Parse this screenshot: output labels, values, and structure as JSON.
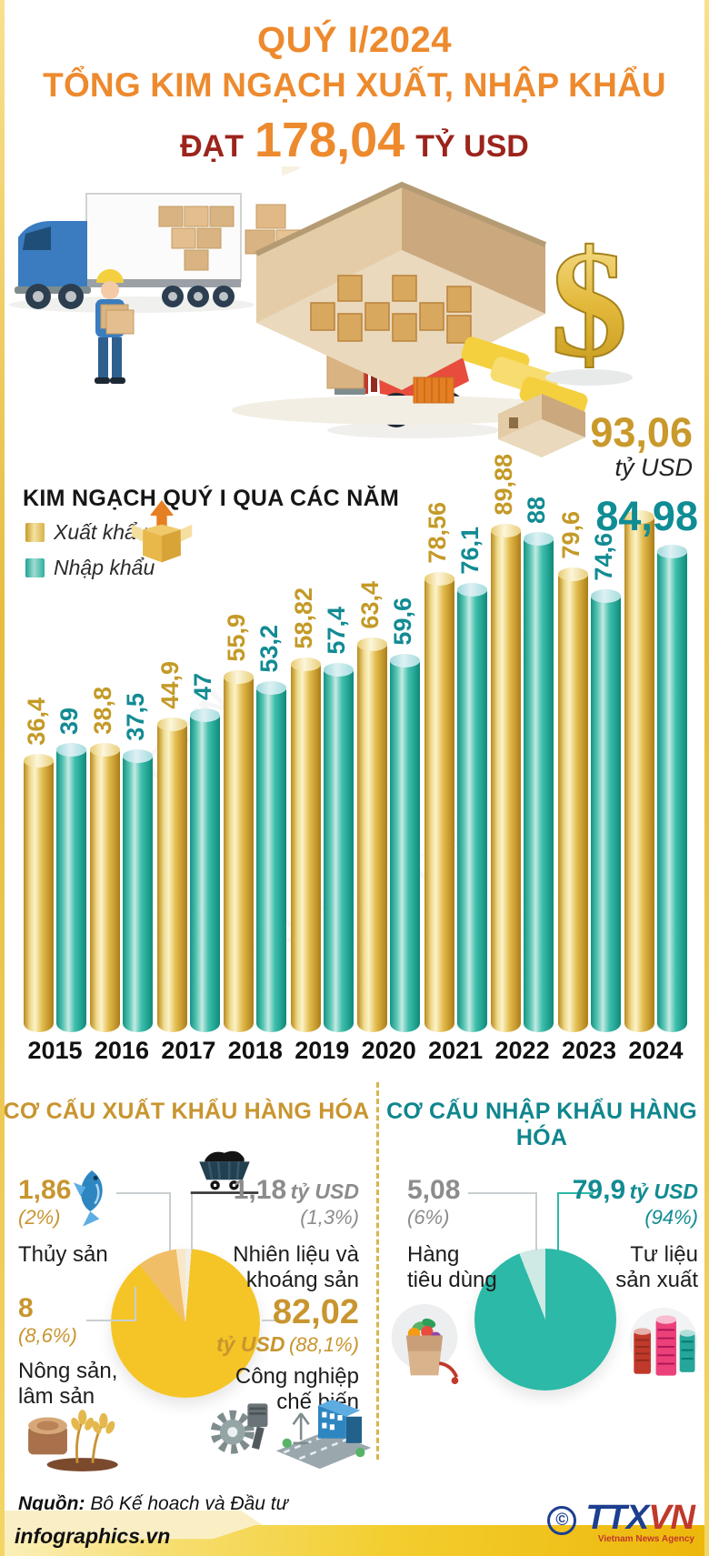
{
  "header": {
    "line1": "QUÝ I/2024",
    "line2": "TỔNG KIM NGẠCH XUẤT, NHẬP KHẨU",
    "line3_prefix": "ĐẠT",
    "line3_value": "178,04",
    "line3_suffix": "TỶ USD"
  },
  "colors": {
    "orange": "#ED8A2E",
    "dark_red": "#9C241C",
    "gold_text": "#C49A27",
    "teal_text": "#128B93",
    "bar_gold": "#D4A62E",
    "bar_teal": "#2BB9A6",
    "gray_text": "#8C8C8C",
    "header_gold": "#C8952F",
    "header_teal": "#0F868D"
  },
  "chart_data": [
    {
      "type": "bar",
      "title": "KIM NGẠCH QUÝ I QUA CÁC NĂM",
      "categories": [
        "2015",
        "2016",
        "2017",
        "2018",
        "2019",
        "2020",
        "2021",
        "2022",
        "2023",
        "2024"
      ],
      "series": [
        {
          "name": "Xuất khẩu",
          "color": "#D4A62E",
          "values": [
            36.4,
            38.8,
            44.9,
            55.9,
            58.82,
            63.4,
            78.56,
            89.88,
            79.6,
            93.06
          ],
          "labels": [
            "36,4",
            "38,8",
            "44,9",
            "55,9",
            "58,82",
            "63,4",
            "78,56",
            "89,88",
            "79,6",
            "93,06"
          ]
        },
        {
          "name": "Nhập khẩu",
          "color": "#2BB9A6",
          "values": [
            39,
            37.5,
            47,
            53.2,
            57.4,
            59.6,
            76.1,
            88,
            74.6,
            84.98
          ],
          "labels": [
            "39",
            "37,5",
            "47",
            "53,2",
            "57,4",
            "59,6",
            "76,1",
            "88",
            "74,6",
            "84,98"
          ]
        }
      ],
      "unit": "tỷ USD",
      "ylim": [
        0,
        95
      ],
      "grid": false,
      "legend_position": "top-left",
      "highlight": {
        "year": "2024",
        "export_value": "93,06",
        "export_unit": "tỷ USD",
        "import_value": "84,98"
      }
    },
    {
      "type": "pie",
      "title": "CƠ CẤU XUẤT KHẨU HÀNG HÓA",
      "slices": [
        {
          "label": "Thủy sản",
          "lines": [
            "Thủy sản"
          ],
          "value_text": "1,86",
          "percent": "(2%)",
          "percent_num": 2,
          "color": "#F8E8C8"
        },
        {
          "label": "Nhiên liệu và khoáng sản",
          "lines": [
            "Nhiên liệu và",
            "khoáng sản"
          ],
          "value_text": "1,18",
          "unit": "tỷ USD",
          "percent": "(1,3%)",
          "percent_num": 1.3,
          "color": "#F0EFE9"
        },
        {
          "label": "Nông sản, lâm sản",
          "lines": [
            "Nông sản,",
            "lâm sản"
          ],
          "value_text": "8",
          "percent": "(8,6%)",
          "percent_num": 8.6,
          "color": "#F1BE68"
        },
        {
          "label": "Công nghiệp chế biến",
          "lines": [
            "Công nghiệp",
            "chế biến"
          ],
          "value_text": "82,02",
          "unit": "tỷ USD",
          "percent": "(88,1%)",
          "percent_num": 88.1,
          "color": "#F5C527"
        }
      ],
      "draw_order": [
        1,
        3,
        2,
        0
      ]
    },
    {
      "type": "pie",
      "title": "CƠ CẤU NHẬP KHẨU HÀNG HÓA",
      "slices": [
        {
          "label": "Hàng tiêu dùng",
          "lines": [
            "Hàng",
            "tiêu dùng"
          ],
          "value_text": "5,08",
          "percent": "(6%)",
          "percent_num": 6,
          "color": "#CFE9E5"
        },
        {
          "label": "Tư liệu sản xuất",
          "lines": [
            "Tư liệu",
            "sản xuất"
          ],
          "value_text": "79,9",
          "unit": "tỷ USD",
          "percent": "(94%)",
          "percent_num": 94,
          "color": "#2CB9A7"
        }
      ],
      "draw_order": [
        1,
        0
      ]
    }
  ],
  "footer": {
    "source_label": "Nguồn:",
    "source_text": "Bộ Kế hoạch và Đầu tư",
    "site": "infographics.vn",
    "copyright": "©",
    "agency_part1": "TTX",
    "agency_part2": "VN",
    "agency_sub": "Vietnam News Agency"
  }
}
